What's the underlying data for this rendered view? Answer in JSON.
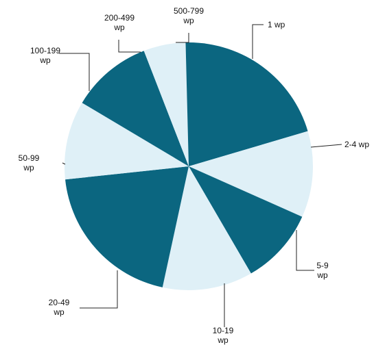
{
  "chart_data": {
    "type": "pie",
    "title": "",
    "unit": "",
    "start": "top, clockwise",
    "legend": "none (direct labels with leader lines)",
    "slices": [
      {
        "label": [
          "1 wp"
        ],
        "value": 20.5,
        "color": "#0b6680"
      },
      {
        "label": [
          "2-4 wp"
        ],
        "value": 11.3,
        "color": "#dff0f7"
      },
      {
        "label": [
          "5-9",
          "wp"
        ],
        "value": 10.0,
        "color": "#0b6680"
      },
      {
        "label": [
          "10-19",
          "wp"
        ],
        "value": 11.8,
        "color": "#dff0f7"
      },
      {
        "label": [
          "20-49",
          "wp"
        ],
        "value": 20.0,
        "color": "#0b6680"
      },
      {
        "label": [
          "50-99",
          "wp"
        ],
        "value": 10.3,
        "color": "#dff0f7"
      },
      {
        "label": [
          "100-199",
          "wp"
        ],
        "value": 10.6,
        "color": "#0b6680"
      },
      {
        "label": [
          "200-499",
          "wp"
        ],
        "value": 5.5,
        "color": "#dff0f7"
      },
      {
        "label": [
          "500-799",
          "wp"
        ],
        "value": 0.4,
        "color": "#0b6680"
      }
    ]
  }
}
